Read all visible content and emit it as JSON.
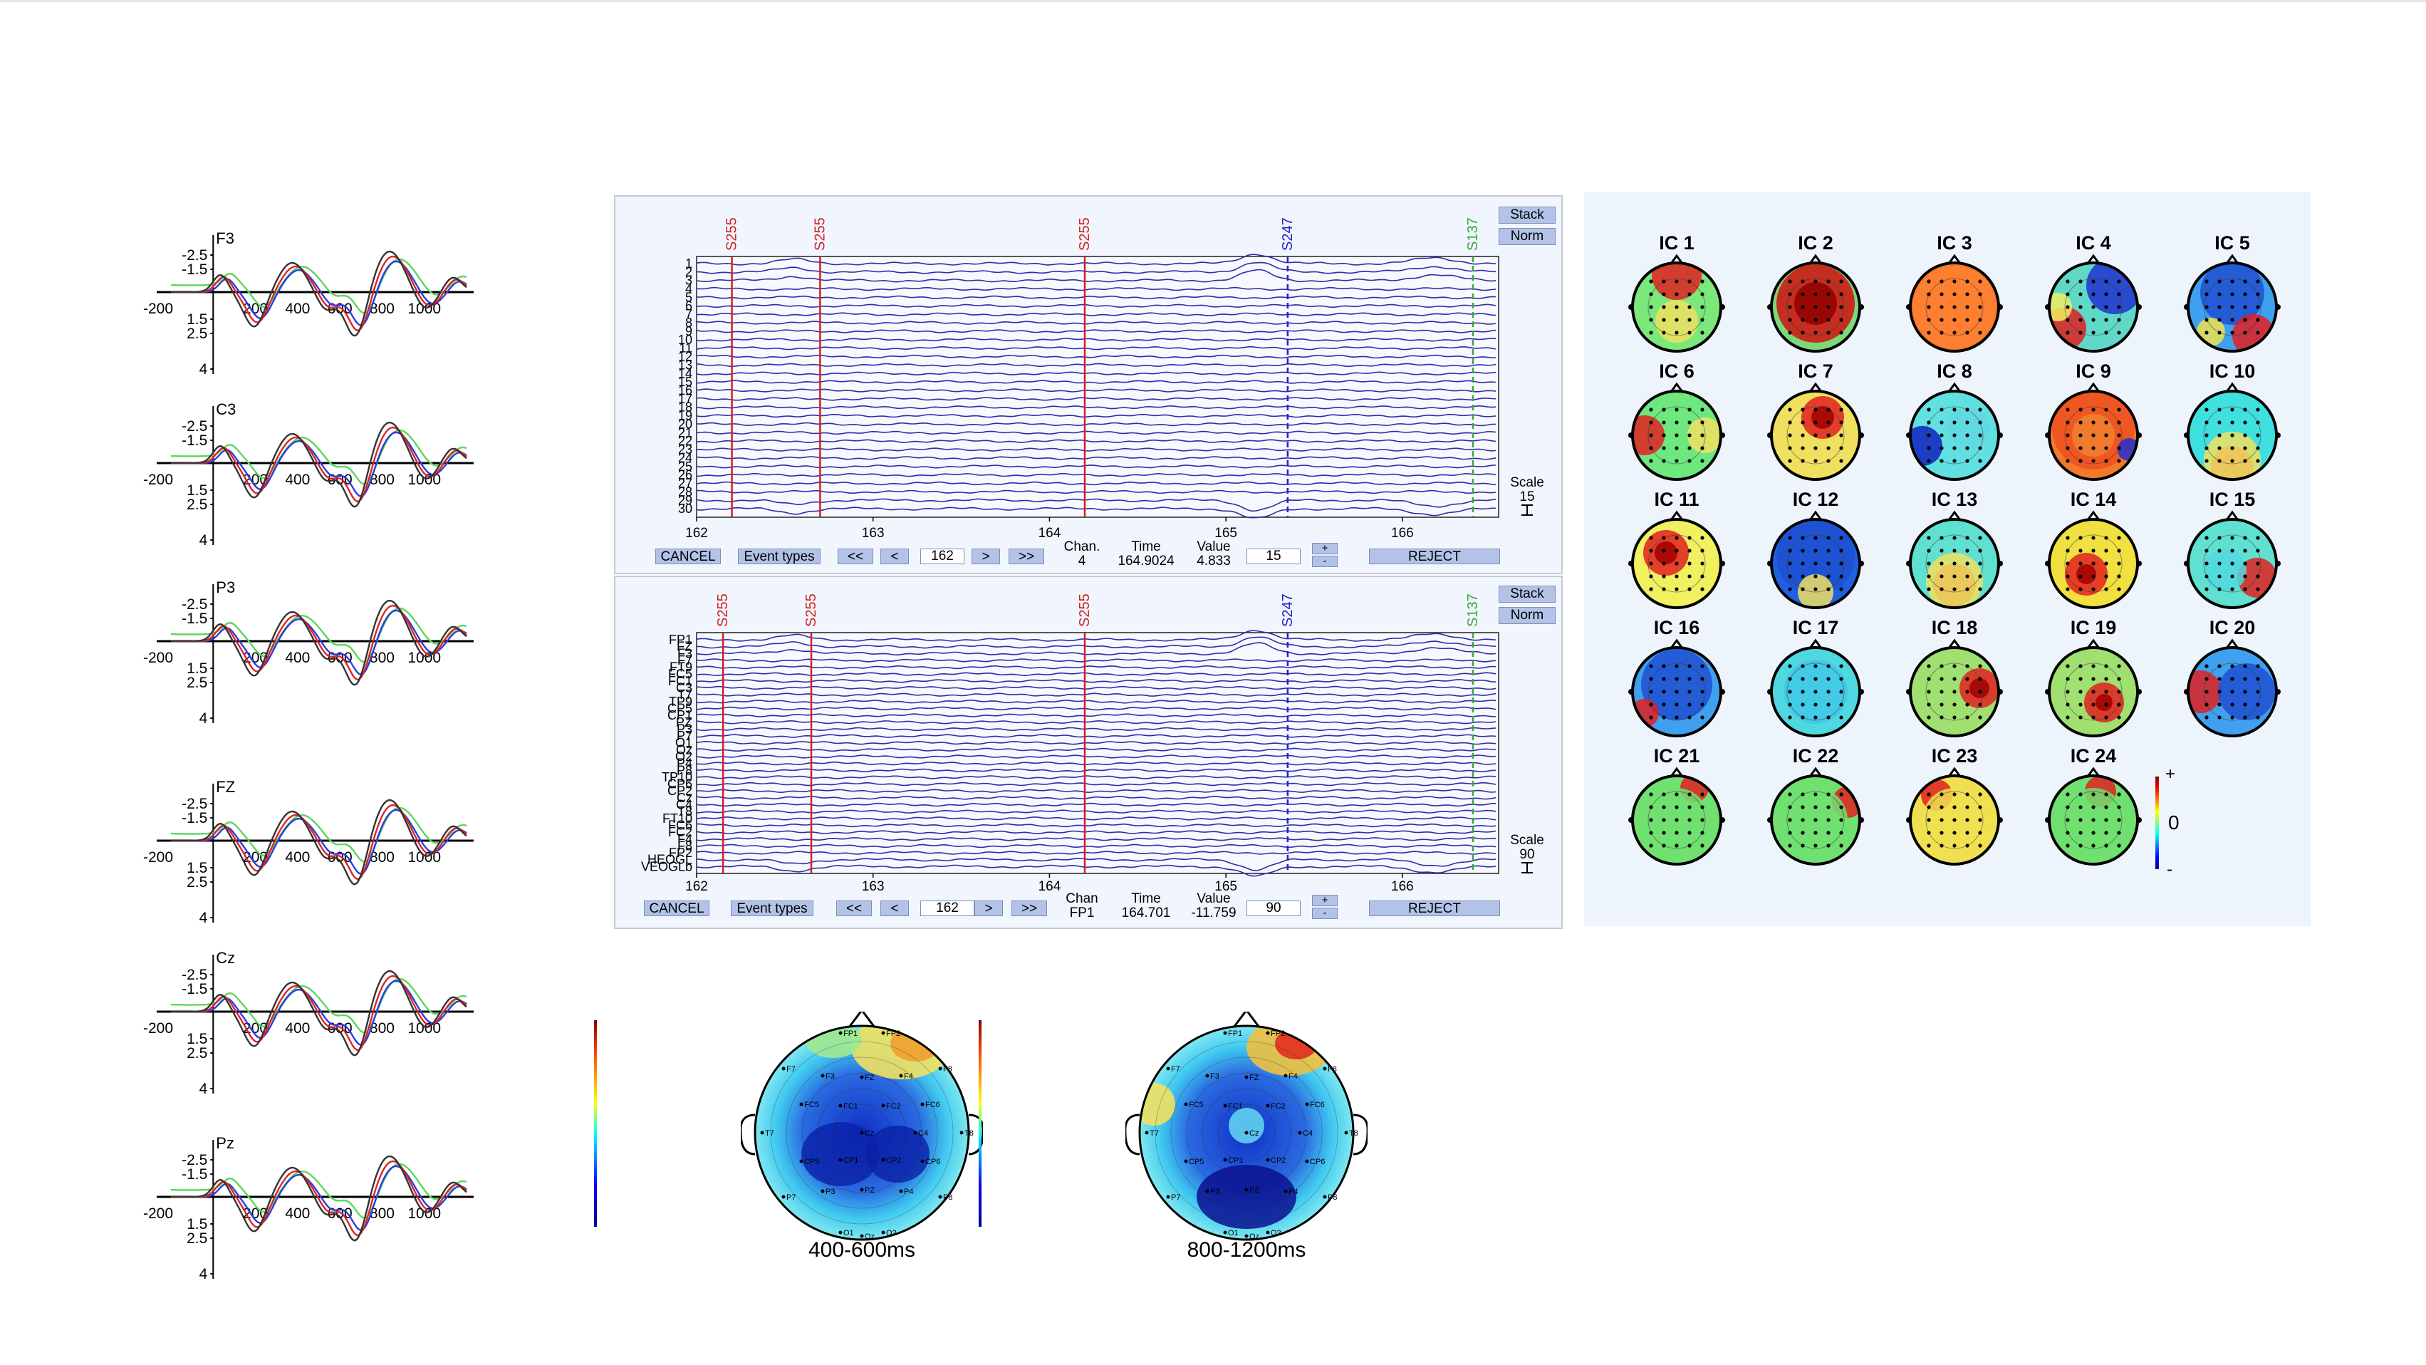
{
  "erp_panels": [
    {
      "channel": "F3",
      "y_ticks": [
        "-2.5",
        "-1.5",
        "1.5",
        "2.5",
        "4"
      ],
      "x_ticks": [
        "-200",
        "200",
        "400",
        "600",
        "800",
        "1000"
      ]
    },
    {
      "channel": "C3",
      "y_ticks": [
        "-2.5",
        "-1.5",
        "1.5",
        "2.5",
        "4"
      ],
      "x_ticks": [
        "-200",
        "200",
        "400",
        "600",
        "800",
        "1000"
      ]
    },
    {
      "channel": "P3",
      "y_ticks": [
        "-2.5",
        "-1.5",
        "1.5",
        "2.5",
        "4"
      ],
      "x_ticks": [
        "-200",
        "200",
        "400",
        "600",
        "800",
        "1000"
      ]
    },
    {
      "channel": "FZ",
      "y_ticks": [
        "-2.5",
        "-1.5",
        "1.5",
        "2.5",
        "4"
      ],
      "x_ticks": [
        "-200",
        "200",
        "400",
        "600",
        "800",
        "1000"
      ]
    },
    {
      "channel": "Cz",
      "y_ticks": [
        "-2.5",
        "-1.5",
        "1.5",
        "2.5",
        "4"
      ],
      "x_ticks": [
        "-200",
        "200",
        "400",
        "600",
        "800",
        "1000"
      ]
    },
    {
      "channel": "Pz",
      "y_ticks": [
        "-2.5",
        "-1.5",
        "1.5",
        "2.5",
        "4"
      ],
      "x_ticks": [
        "-200",
        "200",
        "400",
        "600",
        "800",
        "1000"
      ]
    }
  ],
  "eeg_windows": [
    {
      "events": [
        {
          "label": "S255",
          "color": "#d22020",
          "t": 162.2
        },
        {
          "label": "S255",
          "color": "#d22020",
          "t": 162.7
        },
        {
          "label": "S255",
          "color": "#d22020",
          "t": 164.2
        },
        {
          "label": "S247",
          "color": "#2020d0",
          "t": 165.35,
          "dashed": true
        },
        {
          "label": "S137",
          "color": "#3aa83a",
          "t": 166.4,
          "dashed": true
        }
      ],
      "channel_labels": [
        "1",
        "2",
        "3",
        "4",
        "5",
        "6",
        "7",
        "8",
        "9",
        "10",
        "11",
        "12",
        "13",
        "14",
        "15",
        "16",
        "17",
        "18",
        "19",
        "20",
        "21",
        "22",
        "23",
        "24",
        "25",
        "26",
        "27",
        "28",
        "29",
        "30"
      ],
      "time_ticks": [
        "162",
        "163",
        "164",
        "165",
        "166"
      ],
      "stack_label": "Stack",
      "norm_label": "Norm",
      "scale_label": "Scale",
      "scale_value": "15",
      "cancel_label": "CANCEL",
      "event_types_label": "Event types",
      "nav_prev_fast": "<<",
      "nav_prev": "<",
      "position_value": "162",
      "nav_next": ">",
      "nav_next_fast": ">>",
      "chan_header": "Chan.",
      "chan_value": "4",
      "time_header": "Time",
      "time_value": "164.9024",
      "value_header": "Value",
      "value_value": "4.833",
      "scale_box": "15",
      "plus_label": "+",
      "minus_label": "-",
      "reject_label": "REJECT"
    },
    {
      "events": [
        {
          "label": "S255",
          "color": "#d22020",
          "t": 162.15
        },
        {
          "label": "S255",
          "color": "#d22020",
          "t": 162.65
        },
        {
          "label": "S255",
          "color": "#d22020",
          "t": 164.2
        },
        {
          "label": "S247",
          "color": "#2020d0",
          "t": 165.35,
          "dashed": true
        },
        {
          "label": "S137",
          "color": "#3aa83a",
          "t": 166.4,
          "dashed": true
        }
      ],
      "channel_labels": [
        "FP1",
        "FZ",
        "F3",
        "F7",
        "FT9",
        "FC5",
        "FC1",
        "C3",
        "T7",
        "TP9",
        "CP5",
        "CP1",
        "PZ",
        "P3",
        "P7",
        "O1",
        "Oz",
        "O2",
        "P4",
        "P8",
        "TP10",
        "CP6",
        "CP2",
        "Cz",
        "C4",
        "T8",
        "FT10",
        "FC6",
        "FC2",
        "F4",
        "F8",
        "FP2",
        "HEOG",
        "VEOG"
      ],
      "channel_labels_visible": [
        "FP1",
        "FZ",
        "F3",
        "F7",
        "FT9",
        "FC5",
        "FC1",
        "C3",
        "T7",
        "TP9",
        "CP5",
        "CP1",
        "PZ",
        "P3",
        "P7",
        "O1",
        "Oz",
        "O2",
        "P4",
        "P8",
        "TP10",
        "CP6",
        "CP2",
        "Cz",
        "C4",
        "T8",
        "FT10",
        "FC6",
        "FC2",
        "F4",
        "F8",
        "FP2",
        "HEOGL",
        "VEOGLb"
      ],
      "time_ticks": [
        "162",
        "163",
        "164",
        "165",
        "166"
      ],
      "stack_label": "Stack",
      "norm_label": "Norm",
      "scale_label": "Scale",
      "scale_value": "90",
      "cancel_label": "CANCEL",
      "event_types_label": "Event types",
      "nav_prev_fast": "<<",
      "nav_prev": "<",
      "position_value": "162",
      "nav_next": ">",
      "nav_next_fast": ">>",
      "chan_header": "Chan",
      "chan_value": "FP1",
      "time_header": "Time",
      "time_value": "164.701",
      "value_header": "Value",
      "value_value": "-11.759",
      "scale_box": "90",
      "plus_label": "+",
      "minus_label": "-",
      "reject_label": "REJECT"
    }
  ],
  "ica": {
    "components": [
      "IC 1",
      "IC 2",
      "IC 3",
      "IC 4",
      "IC 5",
      "IC 6",
      "IC 7",
      "IC 8",
      "IC 9",
      "IC 10",
      "IC 11",
      "IC 12",
      "IC 13",
      "IC 14",
      "IC 15",
      "IC 16",
      "IC 17",
      "IC 18",
      "IC 19",
      "IC 20",
      "IC 21",
      "IC 22",
      "IC 23",
      "IC 24"
    ],
    "colorbar_plus": "+",
    "colorbar_zero": "0",
    "colorbar_minus": "-"
  },
  "topomaps": [
    {
      "label": "400-600ms"
    },
    {
      "label": "800-1200ms"
    }
  ],
  "topo_electrodes": [
    "FP1",
    "FP2",
    "F7",
    "F3",
    "FZ",
    "F4",
    "F8",
    "FC5",
    "FC1",
    "FC2",
    "FC6",
    "T7",
    "Cz",
    "C4",
    "T8",
    "CP5",
    "CP1",
    "CP2",
    "CP6",
    "P7",
    "P3",
    "PZ",
    "P4",
    "P8",
    "O1",
    "Oz",
    "O2"
  ],
  "colors": {
    "erp_red": "#e02424",
    "erp_blue": "#2a3de0",
    "erp_green": "#5bd65b",
    "erp_black": "#333333",
    "trace_blue": "#2b2fa8",
    "window_bg": "#f1f5fd",
    "button_bg": "#b3c3e8",
    "ica_panel_bg": "#eef4fb"
  }
}
